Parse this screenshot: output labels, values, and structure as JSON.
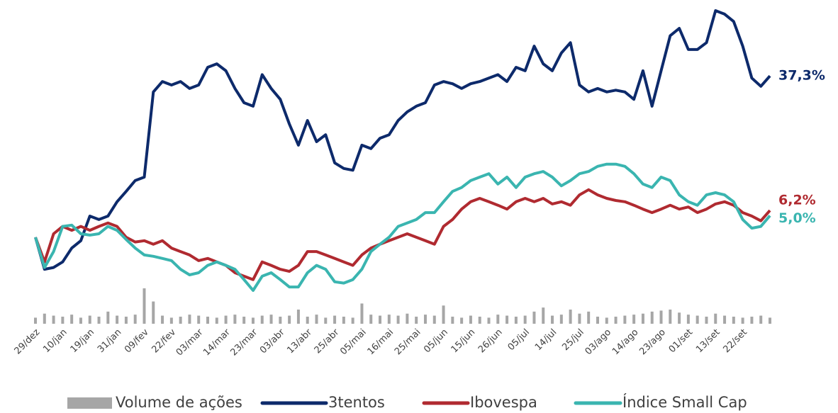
{
  "chart_data": {
    "type": "line",
    "categories": [
      "29/dez",
      null,
      null,
      "10/jan",
      null,
      null,
      "19/jan",
      null,
      null,
      "31/jan",
      null,
      null,
      "09/fev",
      null,
      null,
      "22/fev",
      null,
      null,
      "03/mar",
      null,
      null,
      "14/mar",
      null,
      null,
      "23/mar",
      null,
      null,
      "03/abr",
      null,
      null,
      "13/abr",
      null,
      null,
      "25/abr",
      null,
      null,
      "05/mai",
      null,
      null,
      "16/mai",
      null,
      null,
      "25/mai",
      null,
      null,
      "05/jun",
      null,
      null,
      "15/jun",
      null,
      null,
      "26/jun",
      null,
      null,
      "05/jul",
      null,
      null,
      "14/jul",
      null,
      null,
      "25/jul",
      null,
      null,
      "03/ago",
      null,
      null,
      "14/ago",
      null,
      null,
      "23/ago",
      null,
      null,
      "01/set",
      null,
      null,
      "13/set",
      null,
      null,
      "22/set",
      null,
      null,
      null
    ],
    "volume": {
      "name": "Volume de ações",
      "color": "#a6a6a6",
      "values": [
        6,
        10,
        8,
        7,
        9,
        6,
        8,
        7,
        12,
        8,
        7,
        9,
        35,
        22,
        8,
        6,
        7,
        9,
        8,
        7,
        6,
        8,
        9,
        7,
        6,
        8,
        9,
        7,
        8,
        14,
        7,
        9,
        6,
        8,
        7,
        6,
        20,
        9,
        8,
        9,
        8,
        10,
        7,
        9,
        8,
        18,
        7,
        6,
        8,
        7,
        6,
        9,
        8,
        7,
        8,
        12,
        16,
        8,
        9,
        14,
        10,
        12,
        7,
        6,
        7,
        8,
        9,
        10,
        12,
        13,
        14,
        11,
        9,
        8,
        7,
        10,
        8,
        7,
        6,
        7,
        8,
        6
      ]
    },
    "series": [
      {
        "name": "3tentos",
        "color": "#0d2a6b",
        "values": [
          0,
          -7.4,
          -7,
          -5.7,
          -2.5,
          -0.8,
          4.9,
          4.1,
          4.9,
          8.2,
          10.6,
          13.1,
          13.9,
          33.6,
          36,
          35.2,
          36,
          34.4,
          35.2,
          39.3,
          40.1,
          38.5,
          34.4,
          31.1,
          30.3,
          37.6,
          34.4,
          31.9,
          26.2,
          21.3,
          27,
          22.1,
          23.7,
          17.2,
          15.9,
          15.5,
          21.3,
          20.5,
          22.9,
          23.7,
          27,
          29,
          30.3,
          31.1,
          35.2,
          36,
          35.5,
          34.4,
          35.5,
          36,
          36.8,
          37.6,
          36,
          39.3,
          38.5,
          44.2,
          40.1,
          38.5,
          42.6,
          45,
          35.2,
          33.6,
          34.4,
          33.6,
          34,
          33.6,
          31.9,
          38.5,
          30.3,
          38.5,
          46.6,
          48.3,
          43.4,
          43.4,
          45,
          52.4,
          51.6,
          49.9,
          44.2,
          36.8,
          34.9,
          37.3
        ],
        "value_labels": [
          null,
          null,
          null,
          null,
          null,
          null,
          null,
          null,
          null,
          null,
          null,
          null,
          null,
          null,
          null,
          null,
          null,
          null,
          null,
          null,
          null,
          null,
          null,
          null,
          null,
          null,
          null,
          null,
          null,
          null,
          null,
          null,
          null,
          null,
          null,
          null,
          null,
          null,
          null,
          null,
          null,
          null,
          null,
          null,
          null,
          null,
          null,
          null,
          null,
          null,
          null,
          null,
          null,
          null,
          null,
          null,
          null,
          null,
          null,
          null,
          null,
          null,
          null,
          null,
          null,
          null,
          null,
          null,
          null,
          null,
          null,
          null,
          null,
          null,
          null,
          null,
          null,
          null,
          null,
          null,
          null,
          "37,3%"
        ]
      },
      {
        "name": "Ibovespa",
        "color": "#b02a30",
        "values": [
          0,
          -5.7,
          0.8,
          2.5,
          1.6,
          2.5,
          1.6,
          2.5,
          3.3,
          2.5,
          0,
          -1.1,
          -0.8,
          -1.6,
          -0.8,
          -2.5,
          -3.3,
          -4.1,
          -5.4,
          -4.9,
          -5.7,
          -6.5,
          -8.2,
          -9,
          -9.8,
          -5.7,
          -6.5,
          -7.4,
          -7.9,
          -6.5,
          -3.3,
          -3.3,
          -4.1,
          -4.9,
          -5.7,
          -6.5,
          -4.1,
          -2.5,
          -1.6,
          -0.8,
          0,
          0.8,
          0,
          -0.8,
          -1.6,
          2.5,
          4.1,
          6.5,
          8.2,
          9,
          8.2,
          7.4,
          6.5,
          8.2,
          9,
          8.2,
          9,
          7.7,
          8.2,
          7.4,
          9.8,
          11,
          9.8,
          9,
          8.5,
          8.2,
          7.4,
          6.5,
          5.7,
          6.5,
          7.4,
          6.5,
          7,
          5.7,
          6.5,
          7.7,
          8.2,
          7.4,
          5.7,
          4.9,
          3.8,
          6.2
        ],
        "value_labels": [
          null,
          null,
          null,
          null,
          null,
          null,
          null,
          null,
          null,
          null,
          null,
          null,
          null,
          null,
          null,
          null,
          null,
          null,
          null,
          null,
          null,
          null,
          null,
          null,
          null,
          null,
          null,
          null,
          null,
          null,
          null,
          null,
          null,
          null,
          null,
          null,
          null,
          null,
          null,
          null,
          null,
          null,
          null,
          null,
          null,
          null,
          null,
          null,
          null,
          null,
          null,
          null,
          null,
          null,
          null,
          null,
          null,
          null,
          null,
          null,
          null,
          null,
          null,
          null,
          null,
          null,
          null,
          null,
          null,
          null,
          null,
          null,
          null,
          null,
          null,
          null,
          null,
          null,
          null,
          null,
          null,
          "6,2%"
        ]
      },
      {
        "name": "Índice Small Cap",
        "color": "#3ab5b0",
        "values": [
          0,
          -7,
          -3.3,
          2.5,
          2.8,
          0.8,
          0.5,
          0.8,
          2.5,
          1.6,
          -0.5,
          -2.5,
          -4.1,
          -4.4,
          -4.9,
          -5.4,
          -7.4,
          -8.7,
          -8.2,
          -6.5,
          -5.7,
          -6.5,
          -7.4,
          -9.8,
          -12.3,
          -9,
          -8.2,
          -9.8,
          -11.5,
          -11.5,
          -8.2,
          -6.5,
          -7.4,
          -10.3,
          -10.6,
          -9.8,
          -7.4,
          -3.3,
          -1.6,
          0,
          2.5,
          3.3,
          4.1,
          5.7,
          5.7,
          8.2,
          10.6,
          11.5,
          13.1,
          13.9,
          14.7,
          12.3,
          13.9,
          11.5,
          13.9,
          14.7,
          15.2,
          13.9,
          11.9,
          13.1,
          14.7,
          15.2,
          16.4,
          16.9,
          16.9,
          16.4,
          14.7,
          12.3,
          11.5,
          13.9,
          13.1,
          9.8,
          8.2,
          7.4,
          9.8,
          10.3,
          9.8,
          8.2,
          4.1,
          2.1,
          2.5,
          5.0
        ],
        "value_labels": [
          null,
          null,
          null,
          null,
          null,
          null,
          null,
          null,
          null,
          null,
          null,
          null,
          null,
          null,
          null,
          null,
          null,
          null,
          null,
          null,
          null,
          null,
          null,
          null,
          null,
          null,
          null,
          null,
          null,
          null,
          null,
          null,
          null,
          null,
          null,
          null,
          null,
          null,
          null,
          null,
          null,
          null,
          null,
          null,
          null,
          null,
          null,
          null,
          null,
          null,
          null,
          null,
          null,
          null,
          null,
          null,
          null,
          null,
          null,
          null,
          null,
          null,
          null,
          null,
          null,
          null,
          null,
          null,
          null,
          null,
          null,
          null,
          null,
          null,
          null,
          null,
          null,
          null,
          null,
          null,
          null,
          "5,0%"
        ]
      }
    ]
  }
}
